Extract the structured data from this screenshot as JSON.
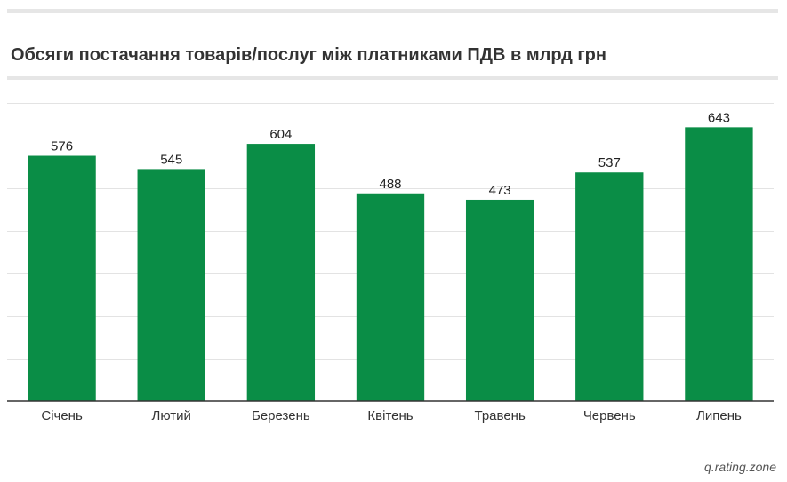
{
  "chart_data": {
    "type": "bar",
    "title": "Обсяги постачання товарів/послуг між платниками ПДВ в млрд грн",
    "categories": [
      "Січень",
      "Лютий",
      "Березень",
      "Квітень",
      "Травень",
      "Червень",
      "Липень"
    ],
    "values": [
      576,
      545,
      604,
      488,
      473,
      537,
      643
    ],
    "ylim": [
      0,
      700
    ],
    "grid": true,
    "grid_interval": 100,
    "show_y_tick_labels": false,
    "show_data_labels": true,
    "show_legend": false,
    "bar_color": "#0a8d46"
  },
  "footer": {
    "watermark": "q.rating.zone"
  }
}
